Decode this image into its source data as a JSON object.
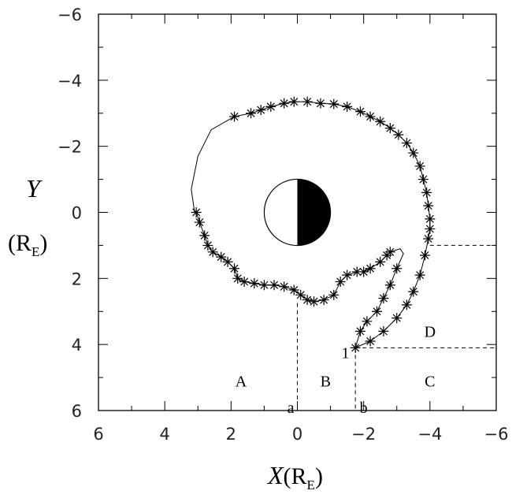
{
  "chart_data": {
    "type": "line",
    "xlabel": "X",
    "ylabel": "Y",
    "unit": {
      "open": "(R",
      "sub": "E",
      "close": ")"
    },
    "xlim": [
      6,
      -6
    ],
    "ylim": [
      6,
      -6
    ],
    "xticks": [
      6,
      4,
      2,
      0,
      {
        "value": -2,
        "label": "−2"
      },
      {
        "value": -4,
        "label": "−4"
      },
      {
        "value": -6,
        "label": "−6"
      }
    ],
    "yticks": [
      6,
      4,
      2,
      0,
      {
        "value": -2,
        "label": "−2"
      },
      {
        "value": -4,
        "label": "−4"
      },
      {
        "value": -6,
        "label": "−6"
      }
    ],
    "annotations": [
      "A",
      "B",
      "C",
      "D",
      "a",
      "b",
      "1"
    ],
    "series": [
      {
        "color": "#000000",
        "marker": "none",
        "x": [
          -1.75,
          -2.2,
          -2.6,
          -3.0,
          -3.3,
          -3.5,
          -3.7,
          -3.85,
          -3.95,
          -4.0,
          -4.0,
          -3.95,
          -3.9,
          -3.8,
          -3.7,
          -3.5,
          -3.3,
          -3.05,
          -2.8,
          -2.5,
          -2.2,
          -1.9,
          -1.5,
          -1.1,
          -0.7,
          -0.3,
          0.1,
          0.4,
          0.8,
          1.1,
          1.4,
          1.9,
          2.6,
          3.0,
          3.2,
          3.1,
          3.05,
          2.95,
          2.8,
          2.7,
          2.55,
          2.3,
          2.1,
          1.9,
          1.8,
          1.6,
          1.3,
          1.0,
          0.7,
          0.4,
          0.1,
          -0.1,
          -0.3,
          -0.5,
          -0.8,
          -1.1,
          -1.3,
          -1.5,
          -1.8,
          -2.0,
          -2.2,
          -2.5,
          -2.7,
          -2.8,
          -3.1,
          -3.2,
          -3.0,
          -2.8,
          -2.6,
          -2.4,
          -2.1,
          -1.9,
          -1.75
        ],
        "values": [
          4.1,
          3.9,
          3.6,
          3.2,
          2.8,
          2.4,
          1.9,
          1.3,
          0.8,
          0.5,
          0.2,
          -0.2,
          -0.6,
          -1.0,
          -1.4,
          -1.8,
          -2.1,
          -2.35,
          -2.55,
          -2.75,
          -2.9,
          -3.05,
          -3.2,
          -3.28,
          -3.3,
          -3.35,
          -3.35,
          -3.3,
          -3.2,
          -3.1,
          -3.0,
          -2.9,
          -2.5,
          -1.7,
          -0.7,
          0.0,
          0.0,
          0.3,
          0.7,
          1.0,
          1.2,
          1.35,
          1.5,
          1.7,
          2.0,
          2.1,
          2.15,
          2.2,
          2.2,
          2.25,
          2.35,
          2.5,
          2.65,
          2.7,
          2.65,
          2.5,
          2.1,
          1.9,
          1.8,
          1.8,
          1.7,
          1.5,
          1.3,
          1.2,
          1.1,
          1.25,
          1.7,
          2.2,
          2.6,
          3.0,
          3.3,
          3.6,
          4.1
        ]
      },
      {
        "color": "#000000",
        "marker": "star",
        "x": [
          -1.75,
          -2.2,
          -2.6,
          -3.0,
          -3.3,
          -3.5,
          -3.7,
          -3.85,
          -3.95,
          -4.0,
          -4.0,
          -3.95,
          -3.9,
          -3.8,
          -3.7,
          -3.5,
          -3.3,
          -3.05,
          -2.8,
          -2.5,
          -2.2,
          -1.9,
          -1.5,
          -1.1,
          -0.7,
          -0.3,
          0.1,
          0.4,
          0.8,
          1.1,
          1.4,
          1.9,
          3.05,
          2.95,
          2.8,
          2.7,
          2.55,
          2.3,
          2.1,
          1.9,
          1.8,
          1.6,
          1.3,
          1.0,
          0.7,
          0.4,
          0.1,
          -0.1,
          -0.3,
          -0.5,
          -0.8,
          -1.1,
          -1.3,
          -1.5,
          -1.8,
          -2.0,
          -2.2,
          -2.5,
          -2.7,
          -2.8,
          -3.0,
          -2.8,
          -2.6,
          -2.4,
          -2.1,
          -1.9
        ],
        "values": [
          4.1,
          3.9,
          3.6,
          3.2,
          2.8,
          2.4,
          1.9,
          1.3,
          0.8,
          0.5,
          0.2,
          -0.2,
          -0.6,
          -1.0,
          -1.4,
          -1.8,
          -2.1,
          -2.35,
          -2.55,
          -2.75,
          -2.9,
          -3.05,
          -3.2,
          -3.28,
          -3.3,
          -3.35,
          -3.35,
          -3.3,
          -3.2,
          -3.1,
          -3.0,
          -2.9,
          0.0,
          0.3,
          0.7,
          1.0,
          1.2,
          1.35,
          1.5,
          1.7,
          2.0,
          2.1,
          2.15,
          2.2,
          2.2,
          2.25,
          2.35,
          2.5,
          2.65,
          2.7,
          2.65,
          2.5,
          2.1,
          1.9,
          1.8,
          1.8,
          1.7,
          1.5,
          1.3,
          1.2,
          1.7,
          2.2,
          2.6,
          3.0,
          3.3,
          3.6
        ]
      }
    ]
  }
}
